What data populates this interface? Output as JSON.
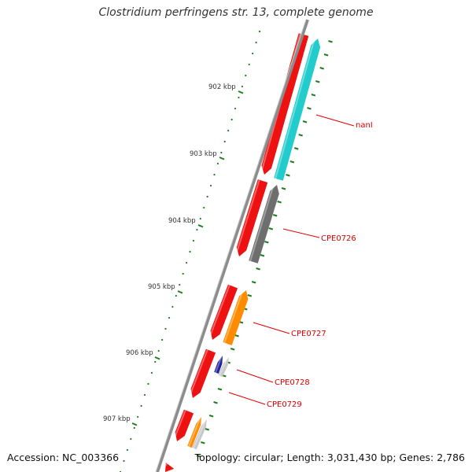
{
  "title": "Clostridium perfringens str. 13, complete genome",
  "footer": {
    "accession": "Accession: NC_003366",
    "summary": "Topology: circular; Length: 3,031,430 bp; Genes: 2,786"
  },
  "colors": {
    "backbone": "#8c8c8c",
    "tick": "#1e7d1e",
    "label": "#dd0000",
    "feature_red": "#ee1111",
    "feature_cyan": "#22cccc",
    "feature_gray": "#6e6e6e",
    "feature_orange": "#ff8c00",
    "feature_navy": "#22229a",
    "feature_silver": "#c8c8c8"
  },
  "scale_labels": [
    "902 kbp",
    "903 kbp",
    "904 kbp",
    "905 kbp",
    "906 kbp",
    "907 kbp"
  ],
  "gene_labels": [
    "nanI",
    "CPE0726",
    "CPE0727",
    "CPE0728",
    "CPE0729"
  ]
}
